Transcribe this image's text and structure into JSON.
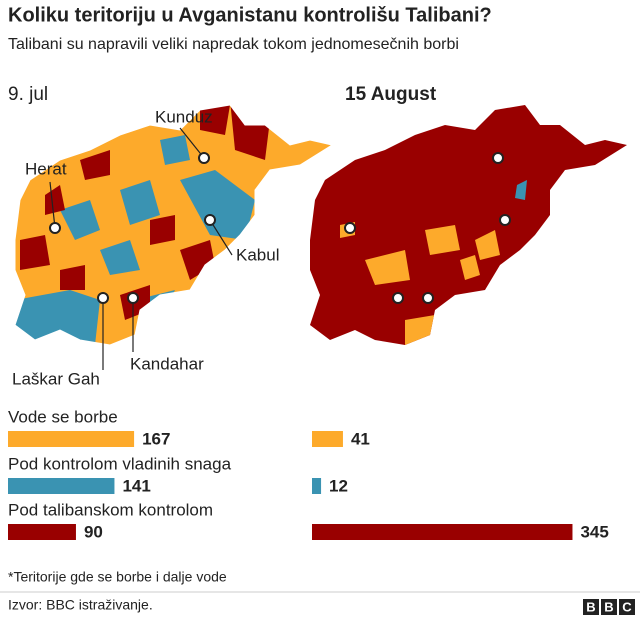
{
  "title": "Koliku teritoriju u Avganistanu kontrolišu Talibani?",
  "subtitle": "Talibani su napravili veliki napredak tokom jednomesečnih borbi",
  "chart_data": {
    "type": "bar",
    "orientation": "horizontal",
    "categories": [
      "Vode se borbe",
      "Pod kontrolom vladinih snaga",
      "Pod talibanskom kontrolom"
    ],
    "colors": [
      "#fdaa2b",
      "#3a93b2",
      "#990000"
    ],
    "series": [
      {
        "name": "9. jul",
        "values": [
          167,
          141,
          90
        ]
      },
      {
        "name": "15 August",
        "values": [
          41,
          12,
          345
        ]
      }
    ]
  },
  "map": {
    "cities": [
      "Kunduz",
      "Herat",
      "Kabul",
      "Laškar Gah",
      "Kandahar"
    ]
  },
  "footnote": "*Teritorije gde se borbe i dalje vode",
  "source": "Izvor: BBC istraživanje.",
  "logo": [
    "B",
    "B",
    "C"
  ]
}
